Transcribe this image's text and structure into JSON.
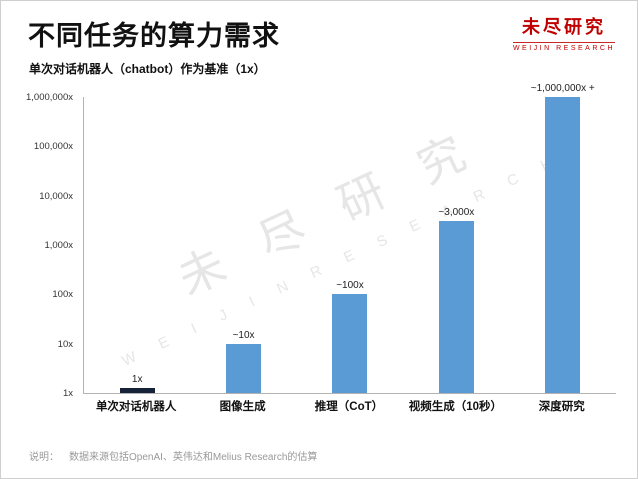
{
  "header": {
    "title": "不同任务的算力需求",
    "subtitle": "单次对话机器人（chatbot）作为基准（1x）"
  },
  "logo": {
    "name": "未尽研究",
    "sub": "WEIJIN RESEARCH",
    "color": "#c00000"
  },
  "watermark": {
    "cn": "未尽研究",
    "en": "W E I J I N   R E S E A R C H"
  },
  "footnote": {
    "label": "说明：",
    "text": "数据来源包括OpenAI、英伟达和Melius Research的估算"
  },
  "chart_data": {
    "type": "bar",
    "scale": "log",
    "title": "不同任务的算力需求",
    "xlabel": "",
    "ylabel": "",
    "ylim": [
      1,
      1000000
    ],
    "grid": false,
    "categories": [
      "单次对话机器人",
      "图像生成",
      "推理（CoT）",
      "视频生成（10秒）",
      "深度研究"
    ],
    "values": [
      1,
      10,
      100,
      3000,
      1000000
    ],
    "bar_labels": [
      "1x",
      "~10x",
      "~100x",
      "~3,000x",
      "~1,000,000x +"
    ],
    "y_ticks": [
      "1,000,000x",
      "100,000x",
      "10,000x",
      "1,000x",
      "100x",
      "10x",
      "1x"
    ],
    "bar_color": "#5b9bd5",
    "first_bar_color": "#152238"
  }
}
